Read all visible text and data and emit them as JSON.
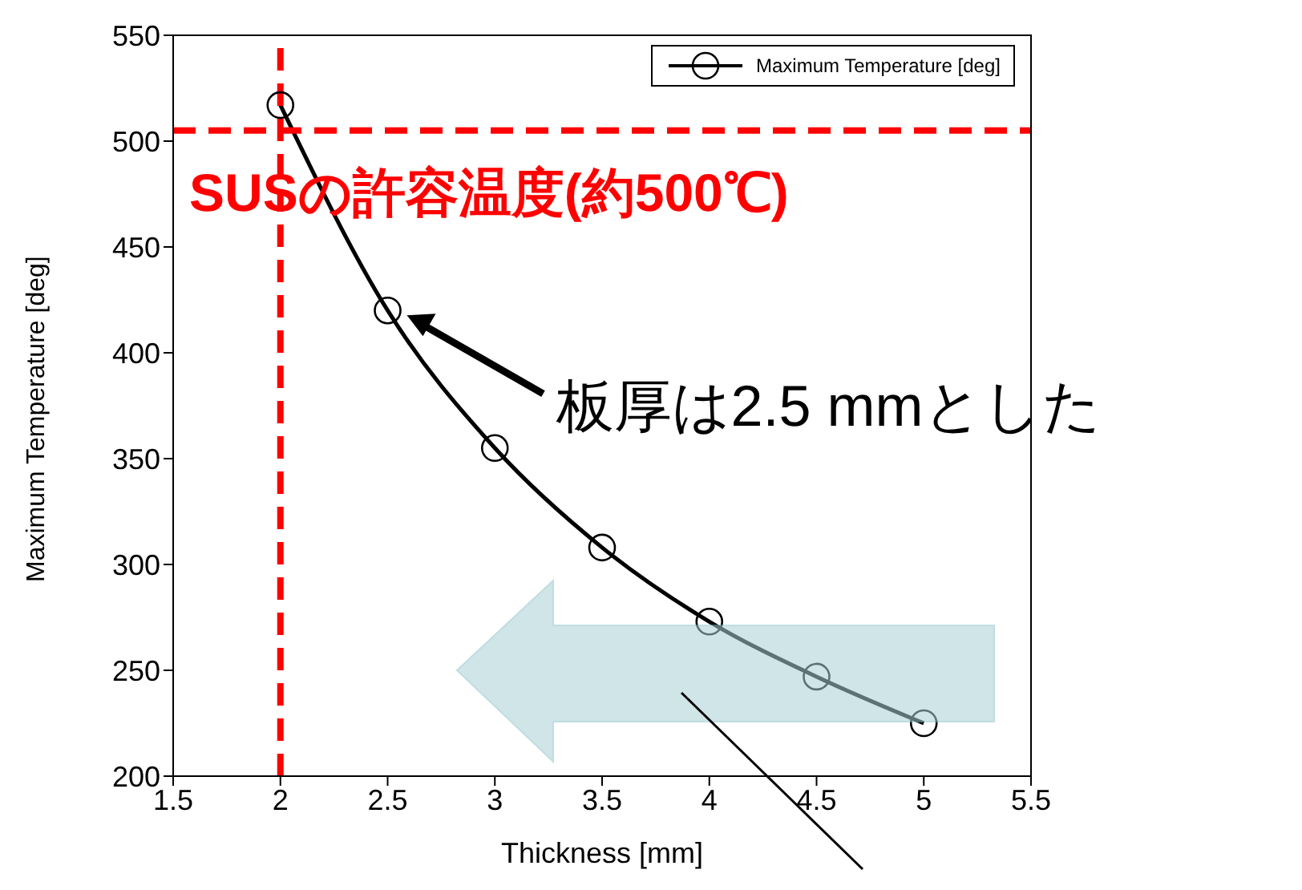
{
  "chart_data": {
    "type": "line",
    "xlabel": "Thickness [mm]",
    "ylabel": "Maximum Temperature [deg]",
    "x": [
      2,
      2.5,
      3,
      3.5,
      4,
      4.5,
      5
    ],
    "series": [
      {
        "name": "Maximum Temperature [deg]",
        "color": "#000000",
        "values": [
          517,
          420,
          355,
          308,
          273,
          247,
          225
        ]
      }
    ],
    "xlim": [
      1.5,
      5.5
    ],
    "xticks": [
      1.5,
      2,
      2.5,
      3,
      3.5,
      4,
      4.5,
      5,
      5.5
    ],
    "ylim": [
      200,
      550
    ],
    "yticks": [
      200,
      250,
      300,
      350,
      400,
      450,
      500,
      550
    ],
    "ref_lines": [
      {
        "axis": "y",
        "value": 505,
        "label": "SUSの許容温度(約500℃)",
        "color": "#ff0000",
        "line_style": "dashed"
      },
      {
        "axis": "x",
        "value": 2,
        "label": null,
        "color": "#ff0000",
        "line_style": "dashed"
      }
    ],
    "annotations": [
      "板厚は2.5 mmとした"
    ],
    "legend": "top right",
    "grid": false,
    "marker": "circle",
    "line_style": "solid"
  }
}
